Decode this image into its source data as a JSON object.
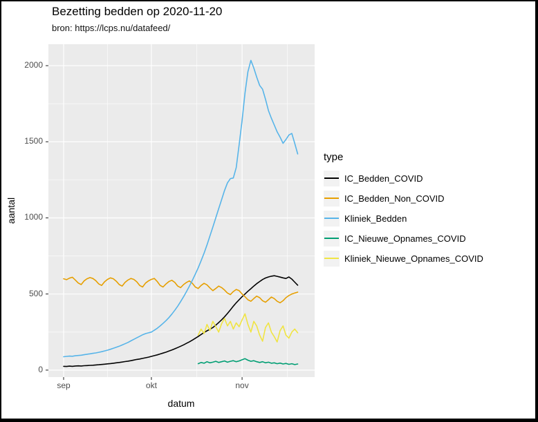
{
  "window": {
    "background": "#FFFFFF",
    "border_color": "#000000"
  },
  "chart_data": {
    "type": "line",
    "title": "Bezetting bedden op 2020-11-20",
    "subtitle": "bron: https://lcps.nu/datafeed/",
    "xlabel": "datum",
    "ylabel": "aantal",
    "legend_title": "type",
    "legend_position": "right",
    "grid": true,
    "panel_background": "#EBEBEB",
    "gridline_color": "#FFFFFF",
    "tick_mark_color": "#333333",
    "tick_label_color": "#4D4D4D",
    "legend_key_fill": "#F2F2F2",
    "x_unit": "days since 2020-09-01",
    "x_domain": [
      -5.2,
      85.8
    ],
    "y_domain": [
      -46,
      2141
    ],
    "x_ticks": [
      {
        "label": "sep",
        "day": 0
      },
      {
        "label": "okt",
        "day": 30
      },
      {
        "label": "nov",
        "day": 61
      }
    ],
    "x_minor_days": [
      15,
      45.5,
      76.5
    ],
    "y_ticks": [
      0,
      500,
      1000,
      1500,
      2000
    ],
    "y_minor_ticks": [
      250,
      750,
      1250,
      1750
    ],
    "series": [
      {
        "name": "IC_Bedden_COVID",
        "color": "#000000",
        "start_day": 0,
        "values": [
          25,
          24,
          26,
          25,
          27,
          28,
          27,
          29,
          30,
          31,
          32,
          34,
          35,
          37,
          39,
          41,
          43,
          45,
          48,
          50,
          53,
          56,
          59,
          62,
          66,
          70,
          73,
          77,
          81,
          85,
          90,
          95,
          100,
          106,
          112,
          118,
          125,
          132,
          140,
          148,
          157,
          166,
          176,
          186,
          197,
          209,
          221,
          234,
          247,
          258,
          268,
          280,
          295,
          312,
          330,
          350,
          372,
          396,
          420,
          442,
          462,
          482,
          500,
          518,
          535,
          552,
          568,
          582,
          595,
          605,
          612,
          617,
          620,
          616,
          611,
          606,
          602,
          612,
          598,
          578,
          558
        ]
      },
      {
        "name": "IC_Bedden_Non_COVID",
        "color": "#E69F00",
        "start_day": 0,
        "values": [
          600,
          594,
          604,
          610,
          592,
          572,
          562,
          586,
          600,
          608,
          602,
          588,
          566,
          556,
          580,
          596,
          606,
          600,
          584,
          562,
          552,
          576,
          592,
          602,
          596,
          580,
          556,
          546,
          572,
          586,
          596,
          602,
          582,
          556,
          546,
          566,
          582,
          590,
          576,
          552,
          542,
          562,
          576,
          586,
          570,
          546,
          536,
          556,
          570,
          560,
          540,
          522,
          536,
          552,
          542,
          526,
          506,
          496,
          516,
          530,
          522,
          500,
          482,
          462,
          452,
          470,
          486,
          476,
          456,
          446,
          462,
          480,
          470,
          452,
          442,
          456,
          476,
          490,
          500,
          506,
          512
        ]
      },
      {
        "name": "Kliniek_Bedden",
        "color": "#56B4E9",
        "start_day": 0,
        "values": [
          88,
          90,
          92,
          91,
          94,
          96,
          98,
          101,
          104,
          107,
          110,
          113,
          117,
          121,
          126,
          131,
          137,
          143,
          150,
          157,
          165,
          173,
          182,
          192,
          202,
          212,
          222,
          232,
          240,
          245,
          250,
          262,
          275,
          290,
          307,
          325,
          345,
          368,
          393,
          420,
          450,
          482,
          516,
          552,
          590,
          630,
          672,
          718,
          768,
          822,
          880,
          940,
          1000,
          1060,
          1120,
          1180,
          1230,
          1258,
          1262,
          1330,
          1480,
          1640,
          1820,
          1960,
          2035,
          1985,
          1925,
          1870,
          1845,
          1780,
          1705,
          1655,
          1610,
          1565,
          1530,
          1490,
          1515,
          1545,
          1555,
          1490,
          1420
        ]
      },
      {
        "name": "IC_Nieuwe_Opnames_COVID",
        "color": "#009E73",
        "start_day": 46,
        "values": [
          42,
          50,
          45,
          55,
          48,
          52,
          58,
          50,
          55,
          60,
          52,
          58,
          62,
          55,
          60,
          68,
          75,
          65,
          58,
          62,
          55,
          50,
          55,
          48,
          52,
          45,
          48,
          42,
          46,
          40,
          44,
          38,
          42,
          36,
          40
        ]
      },
      {
        "name": "Kliniek_Nieuwe_Opnames_COVID",
        "color": "#F0E442",
        "start_day": 46,
        "values": [
          230,
          270,
          240,
          300,
          260,
          320,
          285,
          250,
          305,
          340,
          290,
          320,
          270,
          310,
          285,
          330,
          370,
          300,
          250,
          320,
          290,
          230,
          190,
          280,
          310,
          250,
          220,
          185,
          260,
          290,
          230,
          210,
          250,
          270,
          245
        ]
      }
    ]
  }
}
